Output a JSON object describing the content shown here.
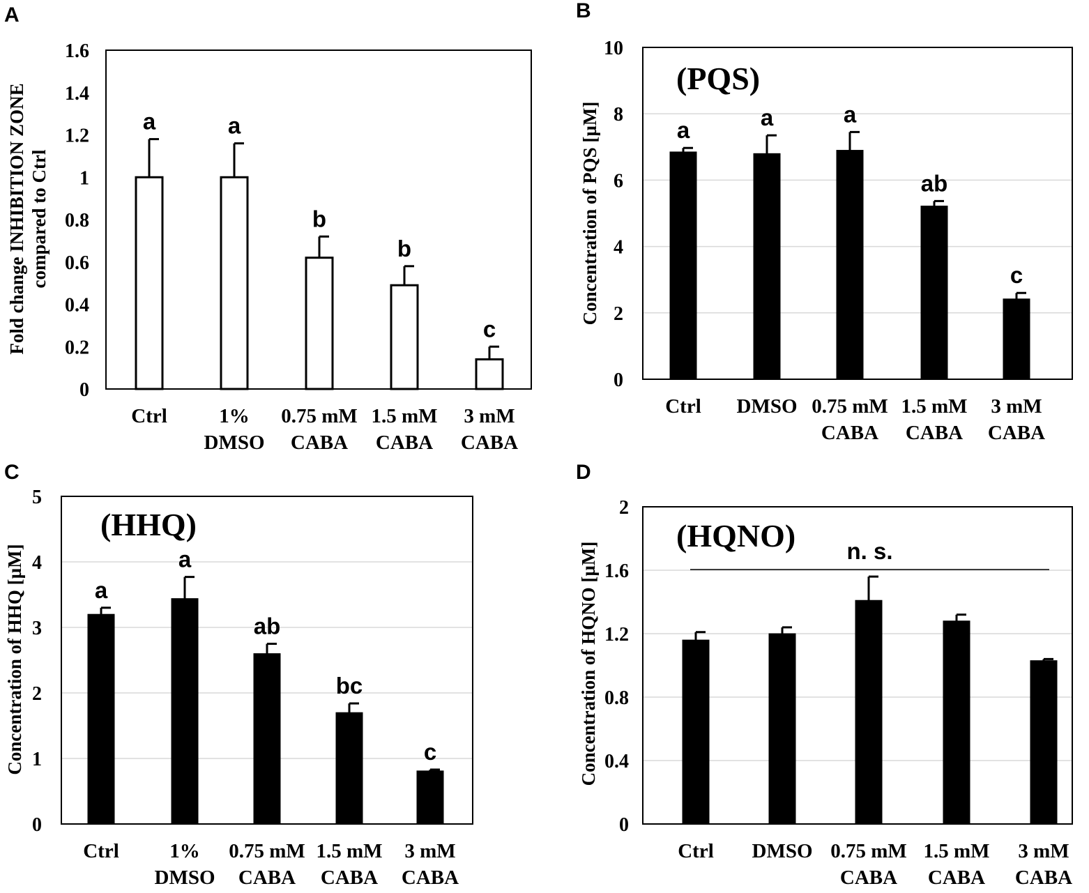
{
  "chart_data": [
    {
      "panel": "A",
      "type": "bar",
      "title": "",
      "ylabel": [
        "Fold change INHIBITION ZONE",
        "compared to Ctrl"
      ],
      "xlabel": "",
      "ylim": [
        0,
        1.6
      ],
      "yticks": [
        "0",
        "0.2",
        "0.4",
        "0.6",
        "0.8",
        "1",
        "1.2",
        "1.4",
        "1.6"
      ],
      "grid": false,
      "bar_style": "hollow",
      "categories": [
        [
          "Ctrl"
        ],
        [
          "1%",
          "DMSO"
        ],
        [
          "0.75 mM",
          "CABA"
        ],
        [
          "1.5 mM",
          "CABA"
        ],
        [
          "3 mM",
          "CABA"
        ]
      ],
      "values": [
        1.0,
        1.0,
        0.62,
        0.49,
        0.14
      ],
      "errors": [
        0.18,
        0.16,
        0.1,
        0.09,
        0.06
      ],
      "significance": [
        "a",
        "a",
        "b",
        "b",
        "c"
      ]
    },
    {
      "panel": "B",
      "type": "bar",
      "title": "(PQS)",
      "ylabel": [
        "Concentration of PQS [µM]"
      ],
      "xlabel": "",
      "ylim": [
        0,
        10
      ],
      "yticks": [
        "0",
        "2",
        "4",
        "6",
        "8",
        "10"
      ],
      "grid": true,
      "bar_style": "filled",
      "categories": [
        [
          "Ctrl"
        ],
        [
          "DMSO"
        ],
        [
          "0.75 mM",
          "CABA"
        ],
        [
          "1.5 mM",
          "CABA"
        ],
        [
          "3 mM",
          "CABA"
        ]
      ],
      "values": [
        6.85,
        6.8,
        6.9,
        5.22,
        2.42
      ],
      "errors": [
        0.12,
        0.55,
        0.55,
        0.15,
        0.18
      ],
      "significance": [
        "a",
        "a",
        "a",
        "ab",
        "c"
      ]
    },
    {
      "panel": "C",
      "type": "bar",
      "title": "(HHQ)",
      "ylabel": [
        "Concentration of HHQ [µM]"
      ],
      "xlabel": "",
      "ylim": [
        0,
        5
      ],
      "yticks": [
        "0",
        "1",
        "2",
        "3",
        "4",
        "5"
      ],
      "grid": true,
      "bar_style": "filled",
      "categories": [
        [
          "Ctrl"
        ],
        [
          "1%",
          "DMSO"
        ],
        [
          "0.75 mM",
          "CABA"
        ],
        [
          "1.5 mM",
          "CABA"
        ],
        [
          "3 mM",
          "CABA"
        ]
      ],
      "values": [
        3.2,
        3.44,
        2.6,
        1.7,
        0.81
      ],
      "errors": [
        0.1,
        0.33,
        0.15,
        0.14,
        0.02
      ],
      "significance": [
        "a",
        "a",
        "ab",
        "bc",
        "c"
      ]
    },
    {
      "panel": "D",
      "type": "bar",
      "title": "(HQNO)",
      "ylabel": [
        "Concentration of HQNO [µM]"
      ],
      "xlabel": "",
      "ylim": [
        0,
        2
      ],
      "yticks": [
        "0",
        "0.4",
        "0.8",
        "1.2",
        "1.6",
        "2"
      ],
      "grid": true,
      "bar_style": "filled",
      "categories": [
        [
          "Ctrl"
        ],
        [
          "DMSO"
        ],
        [
          "0.75 mM",
          "CABA"
        ],
        [
          "1.5 mM",
          "CABA"
        ],
        [
          "3 mM",
          "CABA"
        ]
      ],
      "values": [
        1.16,
        1.2,
        1.41,
        1.28,
        1.03
      ],
      "errors": [
        0.05,
        0.04,
        0.15,
        0.04,
        0.01
      ],
      "significance": [],
      "annotation": "n. s."
    }
  ]
}
